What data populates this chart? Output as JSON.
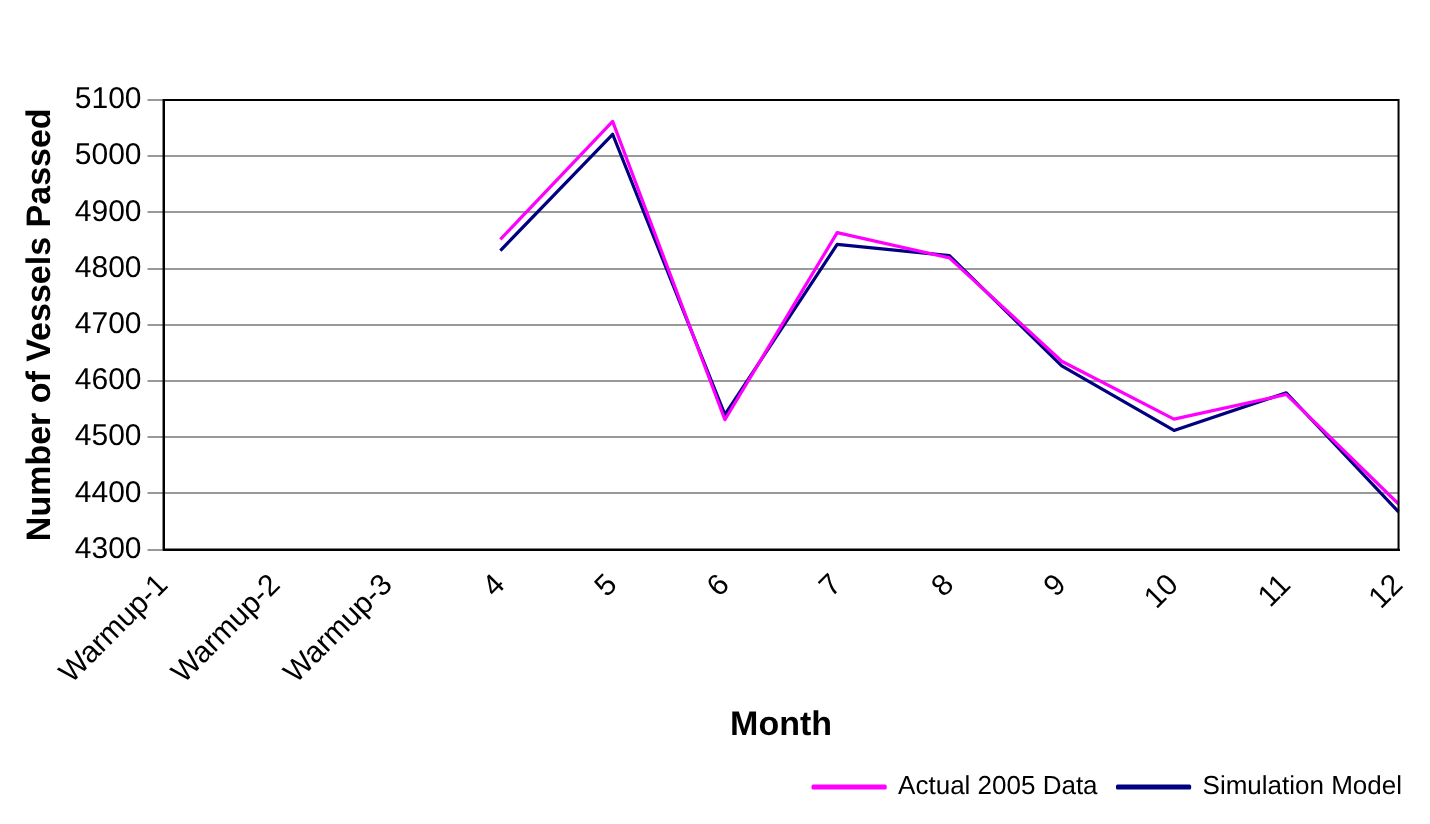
{
  "chart_data": {
    "type": "line",
    "xlabel": "Month",
    "ylabel": "Number of Vessels Passed",
    "categories": [
      "Warmup-1",
      "Warmup-2",
      "Warmup-3",
      "4",
      "5",
      "6",
      "7",
      "8",
      "9",
      "10",
      "11",
      "12"
    ],
    "series": [
      {
        "name": "Actual 2005 Data",
        "color": "#ff00ff",
        "values": [
          null,
          null,
          null,
          4852,
          5062,
          4531,
          4864,
          4819,
          4635,
          4532,
          4576,
          4381
        ]
      },
      {
        "name": "Simulation Model",
        "color": "#000080",
        "values": [
          null,
          null,
          null,
          4832,
          5039,
          4540,
          4843,
          4823,
          4627,
          4512,
          4579,
          4367
        ]
      }
    ],
    "ylim": [
      4300,
      5100
    ],
    "yticks": [
      4300,
      4400,
      4500,
      4600,
      4700,
      4800,
      4900,
      5000,
      5100
    ],
    "grid": "y",
    "legend": "bottom right",
    "marker": "none",
    "line_style": "solid"
  }
}
